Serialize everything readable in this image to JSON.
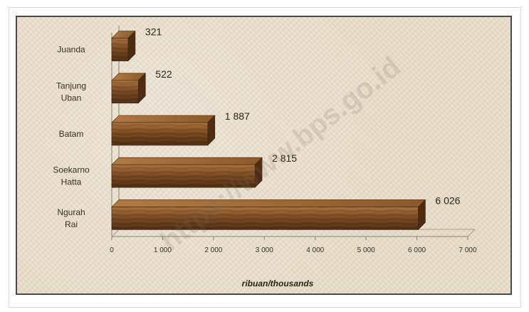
{
  "watermark": "https://www.bps.go.id",
  "chart_data": {
    "type": "bar",
    "orientation": "horizontal",
    "categories": [
      [
        "Juanda"
      ],
      [
        "Tanjung",
        "Uban"
      ],
      [
        "Batam"
      ],
      [
        "Soekarno",
        "Hatta"
      ],
      [
        "Ngurah",
        "Rai"
      ]
    ],
    "values": [
      321,
      522,
      1887,
      2815,
      6026
    ],
    "value_labels": [
      "321",
      "522",
      "1 887",
      "2 815",
      "6 026"
    ],
    "xlim": [
      0,
      7000
    ],
    "x_ticks": [
      0,
      1000,
      2000,
      3000,
      4000,
      5000,
      6000,
      7000
    ],
    "x_tick_labels": [
      "0",
      "1 000",
      "2 000",
      "3 000",
      "4 000",
      "5 000",
      "6 000",
      "7 000"
    ],
    "xlabel": "ribuan/thousands",
    "ylabel": "",
    "title": "",
    "grid": false,
    "legend": "none",
    "bar_color": "#7a4a22",
    "bar_highlight": "#a8703c",
    "bar_dark": "#4e2c12"
  }
}
